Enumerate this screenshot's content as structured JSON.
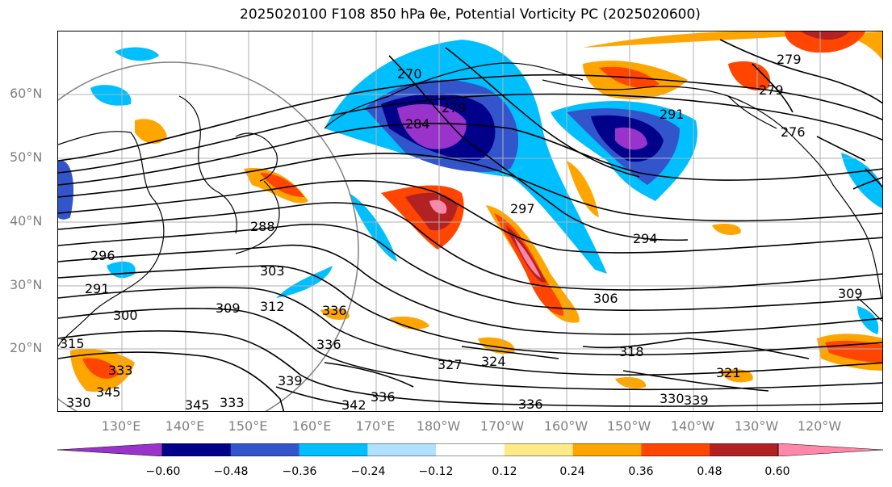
{
  "title": "2025020100 F108 850 hPa θe, Potential Vorticity PC (2025020600)",
  "lat_labels": [
    "60°N",
    "50°N",
    "40°N",
    "30°N",
    "20°N"
  ],
  "lon_labels": [
    "130°E",
    "140°E",
    "150°E",
    "160°E",
    "170°E",
    "180°W",
    "170°W",
    "160°W",
    "150°W",
    "140°W",
    "130°W",
    "120°W"
  ],
  "contour_labels": [
    "270",
    "279",
    "284",
    "291",
    "297",
    "294",
    "288",
    "303",
    "309",
    "312",
    "300",
    "291",
    "296",
    "336",
    "336",
    "339",
    "324",
    "327",
    "336",
    "318",
    "306",
    "321",
    "309",
    "339",
    "336",
    "342",
    "345",
    "345",
    "333",
    "330",
    "276",
    "279",
    "279",
    "315",
    "330",
    "333"
  ],
  "colorbar": {
    "colors": [
      "#9933cc",
      "#00008b",
      "#3355cc",
      "#00bfff",
      "#b0e2ff",
      "#ffffff",
      "#ffea8a",
      "#ffa500",
      "#ff4500",
      "#b22222",
      "#ff88aa"
    ],
    "ticks": [
      "−0.60",
      "−0.48",
      "−0.36",
      "−0.24",
      "−0.12",
      "0.12",
      "0.24",
      "0.36",
      "0.48",
      "0.60"
    ]
  },
  "colors": {
    "contour": "#000000",
    "coast": "#000000",
    "grid": "#b0b0b0",
    "axis_label": "#808080"
  }
}
